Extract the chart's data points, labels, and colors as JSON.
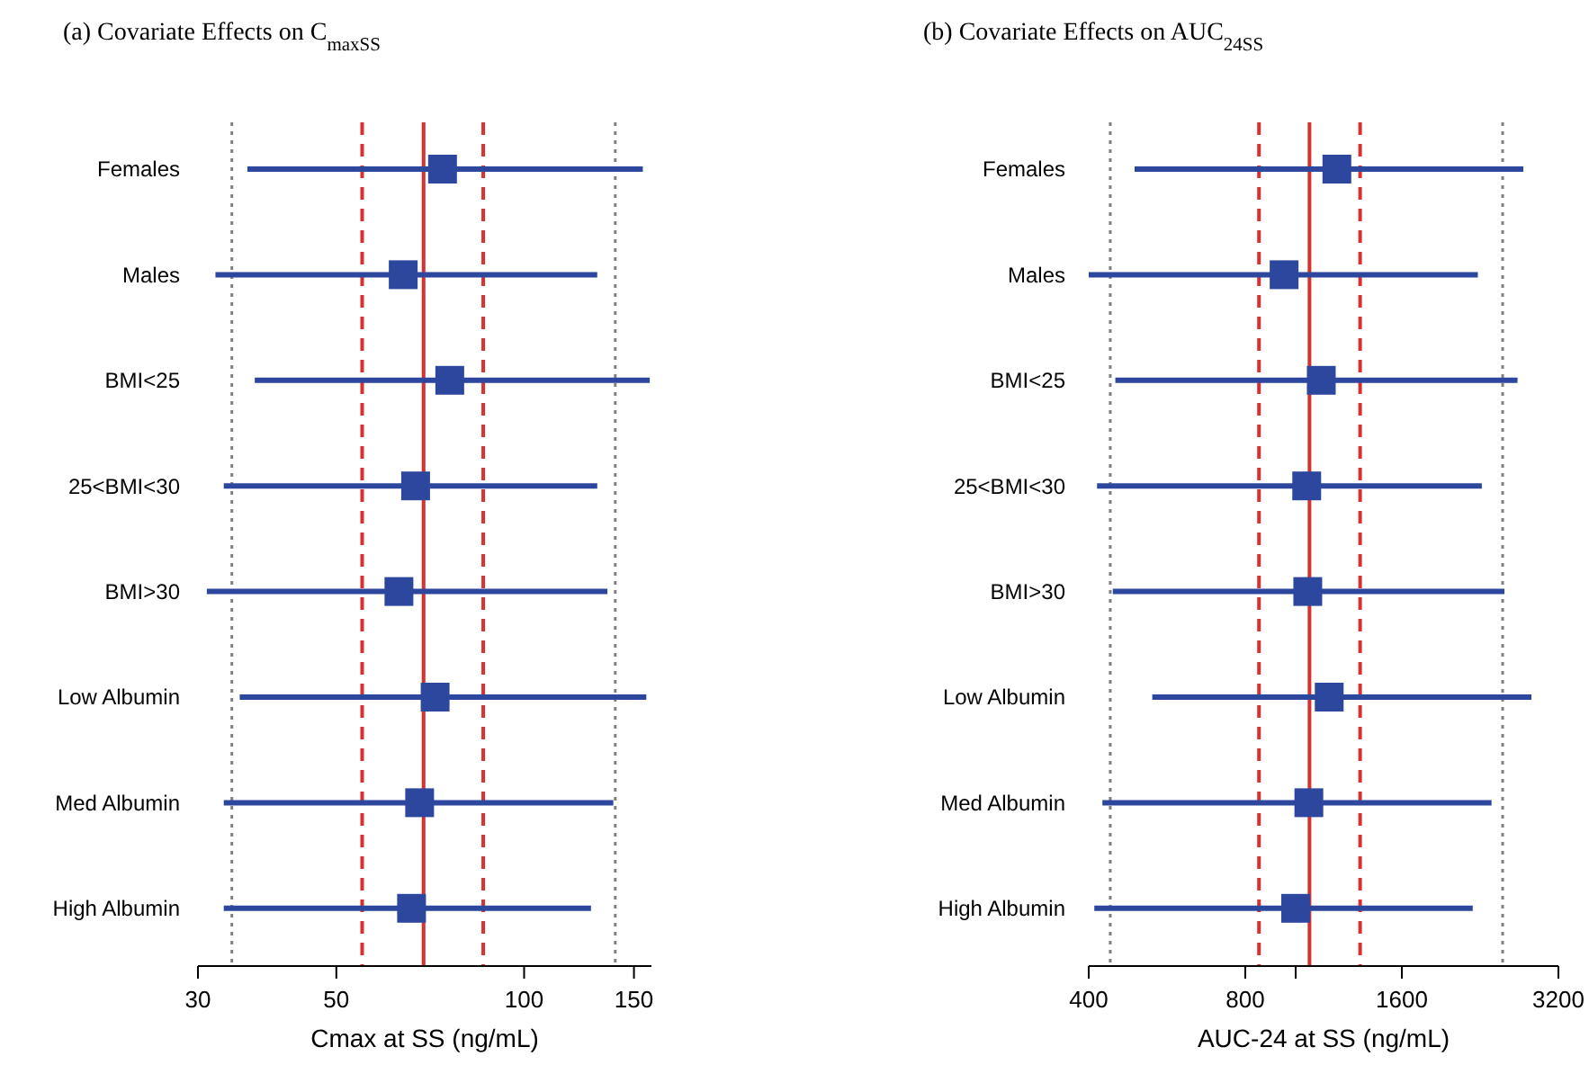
{
  "chart_data": [
    {
      "type": "scatter",
      "orientation": "horizontal",
      "title": "(a) Covariate Effects on C$_{maxSS}$",
      "xlabel": "Cmax at SS (ng/mL)",
      "log": "x",
      "marker": "square",
      "color": "#2e479e",
      "categories": [
        "Females",
        "Males",
        "BMI<25",
        "25<BMI<30",
        "BMI>30",
        "Low Albumin",
        "Med Albumin",
        "High Albumin"
      ],
      "values": [
        74,
        64,
        76,
        67,
        63,
        72,
        68,
        66
      ],
      "errors": [
        [
          36,
          155
        ],
        [
          32,
          131
        ],
        [
          37,
          159
        ],
        [
          33,
          131
        ],
        [
          31,
          136
        ],
        [
          35,
          157
        ],
        [
          33,
          139
        ],
        [
          33,
          128
        ]
      ],
      "xlim": [
        30,
        160
      ],
      "xticks": [
        30,
        50,
        100,
        150
      ],
      "ref_lines": [
        {
          "axis": "x",
          "value": 69,
          "color": "#d93030",
          "line_style": "solid"
        },
        {
          "axis": "x",
          "value": 55,
          "color": "#d93030",
          "line_style": "dashed"
        },
        {
          "axis": "x",
          "value": 86,
          "color": "#d93030",
          "line_style": "dashed"
        },
        {
          "axis": "x",
          "value": 34,
          "color": "#808080",
          "line_style": "dotted"
        },
        {
          "axis": "x",
          "value": 140,
          "color": "#808080",
          "line_style": "dotted"
        }
      ]
    },
    {
      "type": "scatter",
      "orientation": "horizontal",
      "title": "(b) Covariate Effects on AUC$_{24SS}$",
      "xlabel": "AUC-24 at SS (ng/mL)",
      "log": "x",
      "marker": "square",
      "color": "#2e479e",
      "categories": [
        "Females",
        "Males",
        "BMI<25",
        "25<BMI<30",
        "BMI>30",
        "Low Albumin",
        "Med Albumin",
        "High Albumin"
      ],
      "values": [
        1200,
        950,
        1120,
        1050,
        1055,
        1160,
        1060,
        1000
      ],
      "errors": [
        [
          490,
          2740
        ],
        [
          400,
          2240
        ],
        [
          450,
          2670
        ],
        [
          415,
          2280
        ],
        [
          445,
          2520
        ],
        [
          530,
          2840
        ],
        [
          425,
          2380
        ],
        [
          410,
          2190
        ]
      ],
      "xlim": [
        400,
        3200
      ],
      "xticks": [
        400,
        800,
        {
          "value": 1000,
          "label": null
        },
        1600,
        3200
      ],
      "ref_lines": [
        {
          "axis": "x",
          "value": 1063,
          "color": "#d93030",
          "line_style": "solid"
        },
        {
          "axis": "x",
          "value": 850,
          "color": "#d93030",
          "line_style": "dashed"
        },
        {
          "axis": "x",
          "value": 1330,
          "color": "#d93030",
          "line_style": "dashed"
        },
        {
          "axis": "x",
          "value": 440,
          "color": "#808080",
          "line_style": "dotted"
        },
        {
          "axis": "x",
          "value": 2500,
          "color": "#808080",
          "line_style": "dotted"
        }
      ]
    }
  ]
}
